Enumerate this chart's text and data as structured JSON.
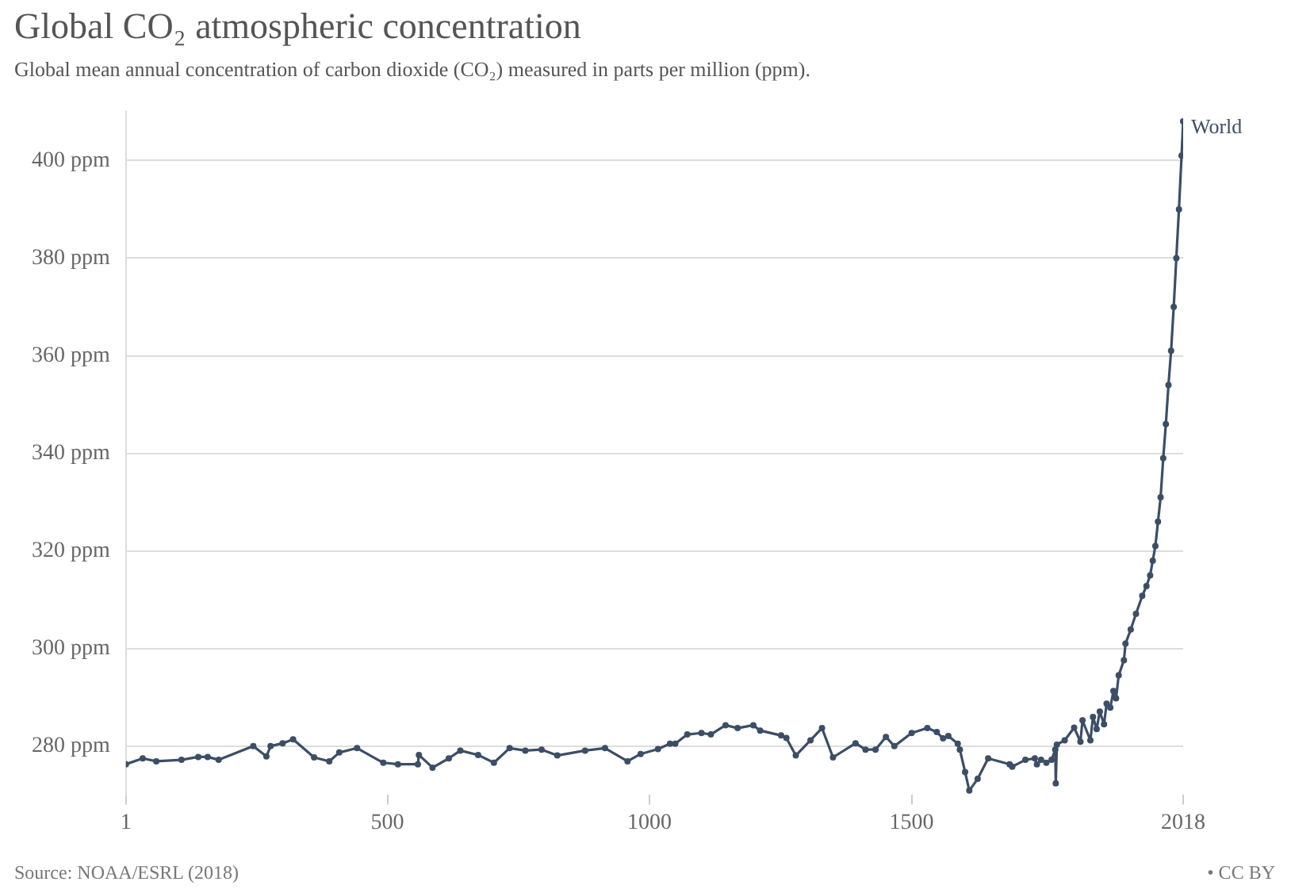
{
  "chart_data": {
    "type": "line",
    "title": "Global CO₂ atmospheric concentration",
    "subtitle": "Global mean annual concentration of carbon dioxide (CO₂) measured in parts per million (ppm).",
    "annotations": [
      "Source: NOAA/ESRL (2018)",
      "• CC BY"
    ],
    "marker": "circle",
    "grid": "y",
    "legend": false,
    "xlim": [
      1,
      2018
    ],
    "xticks": [
      1,
      500,
      1000,
      1500,
      2018
    ],
    "ylim": [
      270,
      410
    ],
    "yticks": [
      {
        "value": 280,
        "label": "280 ppm"
      },
      {
        "value": 300,
        "label": "300 ppm"
      },
      {
        "value": 320,
        "label": "320 ppm"
      },
      {
        "value": 340,
        "label": "340 ppm"
      },
      {
        "value": 360,
        "label": "360 ppm"
      },
      {
        "value": 380,
        "label": "380 ppm"
      },
      {
        "value": 400,
        "label": "400 ppm"
      }
    ],
    "series": [
      {
        "name": "World",
        "color": "#3c4e66",
        "x": [
          1,
          33,
          59,
          107,
          139,
          157,
          178,
          244,
          269,
          277,
          300,
          320,
          360,
          389,
          408,
          442,
          492,
          520,
          558,
          560,
          586,
          617,
          639,
          673,
          703,
          733,
          763,
          794,
          824,
          877,
          915,
          958,
          983,
          1016,
          1039,
          1049,
          1072,
          1099,
          1117,
          1145,
          1168,
          1198,
          1211,
          1251,
          1261,
          1279,
          1307,
          1329,
          1350,
          1393,
          1412,
          1431,
          1451,
          1467,
          1500,
          1530,
          1548,
          1560,
          1570,
          1588,
          1592,
          1602,
          1610,
          1626,
          1646,
          1687,
          1692,
          1717,
          1735,
          1739,
          1747,
          1757,
          1767,
          1774,
          1775,
          1777,
          1792,
          1810,
          1822,
          1826,
          1841,
          1846,
          1853,
          1859,
          1867,
          1872,
          1879,
          1885,
          1890,
          1895,
          1905,
          1908,
          1918,
          1928,
          1940,
          1948,
          1955,
          1960,
          1965,
          1970,
          1975,
          1980,
          1985,
          1990,
          1995,
          2000,
          2005,
          2010,
          2015,
          2018
        ],
        "values": [
          276.3,
          277.5,
          276.9,
          277.2,
          277.8,
          277.8,
          277.2,
          280,
          277.9,
          280,
          280.6,
          281.4,
          277.7,
          276.9,
          278.7,
          279.6,
          276.6,
          276.3,
          276.3,
          278.2,
          275.6,
          277.5,
          279.1,
          278.2,
          276.6,
          279.6,
          279.1,
          279.3,
          278.1,
          279.1,
          279.6,
          276.9,
          278.4,
          279.4,
          280.5,
          280.5,
          282.4,
          282.7,
          282.4,
          284.3,
          283.7,
          284.3,
          283.2,
          282.2,
          281.7,
          278.1,
          281.2,
          283.7,
          277.7,
          280.6,
          279.3,
          279.3,
          281.9,
          280,
          282.7,
          283.7,
          282.9,
          281.6,
          282.1,
          280.5,
          279.3,
          274.7,
          270.9,
          273.3,
          277.5,
          276.3,
          275.8,
          277.2,
          277.5,
          276.3,
          277.2,
          276.6,
          277.2,
          279.3,
          272.4,
          280.3,
          281.2,
          283.8,
          280.9,
          285.3,
          281.2,
          286,
          283.5,
          287.1,
          284.5,
          288.7,
          287.9,
          291.3,
          289.8,
          294.5,
          297.6,
          301,
          303.9,
          307.1,
          310.8,
          312.8,
          315,
          318,
          321,
          326,
          331,
          339,
          346,
          354,
          361,
          370,
          380,
          390,
          401,
          408
        ]
      }
    ]
  }
}
